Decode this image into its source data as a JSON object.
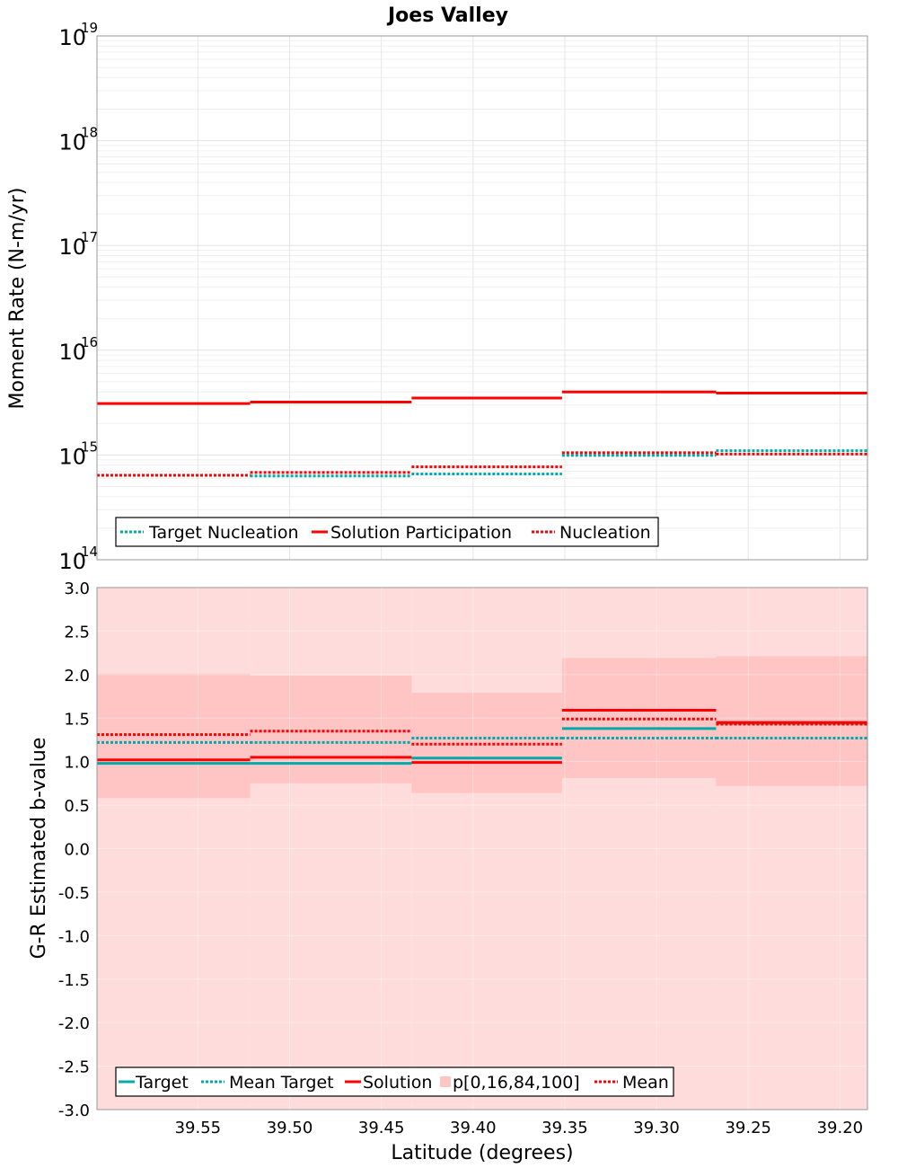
{
  "chart_data": {
    "title": "Joes Valley",
    "xlabel": "Latitude (degrees)",
    "xlim": [
      39.605,
      39.185
    ],
    "xticks": [
      "39.55",
      "39.50",
      "39.45",
      "39.40",
      "39.35",
      "39.30",
      "39.25",
      "39.20"
    ],
    "xtick_values": [
      39.55,
      39.5,
      39.45,
      39.4,
      39.35,
      39.3,
      39.25,
      39.2
    ],
    "bin_edges": [
      39.605,
      39.5215,
      39.4335,
      39.3515,
      39.2675,
      39.185
    ],
    "top": {
      "type": "line",
      "scale": "log",
      "ylabel": "Moment Rate (N-m/yr)",
      "ylim": [
        100000000000000.0,
        1e+19
      ],
      "ytick_bases": [
        "10",
        "10",
        "10",
        "10",
        "10",
        "10"
      ],
      "ytick_exponents": [
        "14",
        "15",
        "16",
        "17",
        "18",
        "19"
      ],
      "ytick_values": [
        14,
        15,
        16,
        17,
        18,
        19
      ],
      "series": [
        {
          "name": "Target Nucleation",
          "color": "#00aaaa",
          "style": "dotted",
          "values": [
            640000000000000.0,
            630000000000000.0,
            660000000000000.0,
            990000000000000.0,
            1100000000000000.0
          ]
        },
        {
          "name": "Solution Participation",
          "color": "#ff0000",
          "style": "solid",
          "values": [
            3100000000000000.0,
            3200000000000000.0,
            3500000000000000.0,
            4000000000000000.0,
            3900000000000000.0
          ]
        },
        {
          "name": "Nucleation",
          "color": "#ff0000",
          "style": "dotted",
          "values": [
            640000000000000.0,
            680000000000000.0,
            770000000000000.0,
            1050000000000000.0,
            1020000000000000.0
          ]
        }
      ],
      "legend_position": "bottom-left"
    },
    "bottom": {
      "type": "line",
      "ylabel": "G-R Estimated b-value",
      "ylim": [
        -3.0,
        3.0
      ],
      "yticks": [
        "3.0",
        "2.5",
        "2.0",
        "1.5",
        "1.0",
        "0.5",
        "0.0",
        "-0.5",
        "-1.0",
        "-1.5",
        "-2.0",
        "-2.5",
        "-3.0"
      ],
      "ytick_values": [
        3.0,
        2.5,
        2.0,
        1.5,
        1.0,
        0.5,
        0.0,
        -0.5,
        -1.0,
        -1.5,
        -2.0,
        -2.5,
        -3.0
      ],
      "band_outer": {
        "lower": [
          -3.0,
          -3.0,
          -3.0,
          -3.0,
          -3.0
        ],
        "upper": [
          3.0,
          3.0,
          3.0,
          3.0,
          3.0
        ],
        "color": "#ffdcdc"
      },
      "band_inner": {
        "name": "p[0,16,84,100]",
        "lower": [
          0.58,
          0.75,
          0.64,
          0.81,
          0.72
        ],
        "upper": [
          2.01,
          1.99,
          1.79,
          2.19,
          2.21
        ],
        "color": "#ffc4c4"
      },
      "series": [
        {
          "name": "Target",
          "color": "#00aaaa",
          "style": "solid",
          "values": [
            0.98,
            0.98,
            1.04,
            1.38,
            1.44
          ]
        },
        {
          "name": "Mean Target",
          "color": "#00aaaa",
          "style": "dotted",
          "values": [
            1.22,
            1.22,
            1.27,
            1.27,
            1.27
          ]
        },
        {
          "name": "Solution",
          "color": "#ff0000",
          "style": "solid",
          "values": [
            1.02,
            1.05,
            0.99,
            1.59,
            1.45
          ]
        },
        {
          "name": "Mean",
          "color": "#ff0000",
          "style": "dotted",
          "values": [
            1.31,
            1.35,
            1.2,
            1.49,
            1.43
          ]
        }
      ],
      "legend_order": [
        "Target",
        "Mean Target",
        "Solution",
        "p[0,16,84,100]",
        "Mean"
      ],
      "legend_position": "bottom-left"
    }
  }
}
